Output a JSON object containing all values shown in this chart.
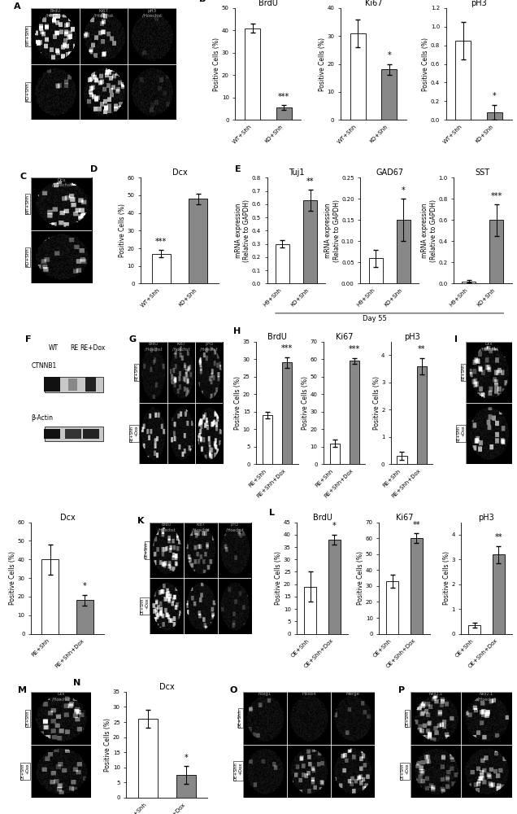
{
  "B_BrdU": {
    "bars": [
      41,
      5.5
    ],
    "errors": [
      2,
      1
    ],
    "labels": [
      "WT+Shh",
      "KO+Shh"
    ],
    "sig": "***",
    "sig_bar": 1,
    "ylim": [
      0,
      50
    ],
    "yticks": [
      0,
      10,
      20,
      30,
      40,
      50
    ]
  },
  "B_Ki67": {
    "bars": [
      31,
      18
    ],
    "errors": [
      5,
      2
    ],
    "labels": [
      "WT+Shh",
      "KO+Shh"
    ],
    "sig": "*",
    "sig_bar": 1,
    "ylim": [
      0,
      40
    ],
    "yticks": [
      0,
      10,
      20,
      30,
      40
    ]
  },
  "B_pH3": {
    "bars": [
      0.85,
      0.08
    ],
    "errors": [
      0.2,
      0.08
    ],
    "labels": [
      "WT+Shh",
      "KO+Shh"
    ],
    "sig": "*",
    "sig_bar": 1,
    "ylim": [
      0,
      1.2
    ],
    "yticks": [
      0,
      0.2,
      0.4,
      0.6,
      0.8,
      1.0,
      1.2
    ]
  },
  "D_Dcx": {
    "bars": [
      17,
      48
    ],
    "errors": [
      2,
      3
    ],
    "labels": [
      "WT+Shh",
      "KO+Shh"
    ],
    "sig": "***",
    "sig_bar": 0,
    "ylim": [
      0,
      60
    ],
    "yticks": [
      0,
      10,
      20,
      30,
      40,
      50,
      60
    ]
  },
  "E_Tuj1": {
    "bars": [
      0.3,
      0.63
    ],
    "errors": [
      0.03,
      0.08
    ],
    "labels": [
      "H9+Shh",
      "KO+Shh"
    ],
    "sig": "**",
    "sig_bar": 1,
    "ylim": [
      0,
      0.8
    ],
    "yticks": [
      0,
      0.1,
      0.2,
      0.3,
      0.4,
      0.5,
      0.6,
      0.7,
      0.8
    ]
  },
  "E_GAD67": {
    "bars": [
      0.06,
      0.15
    ],
    "errors": [
      0.02,
      0.05
    ],
    "labels": [
      "H9+Shh",
      "KO+Shh"
    ],
    "sig": "*",
    "sig_bar": 1,
    "ylim": [
      0,
      0.25
    ],
    "yticks": [
      0,
      0.05,
      0.1,
      0.15,
      0.2,
      0.25
    ]
  },
  "E_SST": {
    "bars": [
      0.02,
      0.6
    ],
    "errors": [
      0.01,
      0.15
    ],
    "labels": [
      "H9+Shh",
      "KO+Shh"
    ],
    "sig": "***",
    "sig_bar": 1,
    "ylim": [
      0,
      1.0
    ],
    "yticks": [
      0,
      0.2,
      0.4,
      0.6,
      0.8,
      1.0
    ]
  },
  "H_BrdU": {
    "bars": [
      14,
      29
    ],
    "errors": [
      1,
      1.5
    ],
    "labels": [
      "RE+Shh",
      "RE+Shh+Dox"
    ],
    "sig": "***",
    "sig_bar": 1,
    "ylim": [
      0,
      35
    ],
    "yticks": [
      0,
      5,
      10,
      15,
      20,
      25,
      30,
      35
    ]
  },
  "H_Ki67": {
    "bars": [
      12,
      59
    ],
    "errors": [
      2,
      1.5
    ],
    "labels": [
      "RE+Shh",
      "RE+Shh+Dox"
    ],
    "sig": "***",
    "sig_bar": 1,
    "ylim": [
      0,
      70
    ],
    "yticks": [
      0,
      10,
      20,
      30,
      40,
      50,
      60,
      70
    ]
  },
  "H_pH3": {
    "bars": [
      0.3,
      3.6
    ],
    "errors": [
      0.15,
      0.3
    ],
    "labels": [
      "RE+Shh",
      "RE+Shh+Dox"
    ],
    "sig": "**",
    "sig_bar": 1,
    "ylim": [
      0,
      4.5
    ],
    "yticks": [
      0,
      1,
      2,
      3,
      4
    ]
  },
  "J_Dcx": {
    "bars": [
      40,
      18
    ],
    "errors": [
      8,
      3
    ],
    "labels": [
      "RE+Shh",
      "RE+Shh+Dox"
    ],
    "sig": "*",
    "sig_bar": 1,
    "ylim": [
      0,
      60
    ],
    "yticks": [
      0,
      10,
      20,
      30,
      40,
      50,
      60
    ]
  },
  "L_BrdU": {
    "bars": [
      19,
      38
    ],
    "errors": [
      6,
      2
    ],
    "labels": [
      "OE+Shh",
      "OE+Shh+Dox"
    ],
    "sig": "*",
    "sig_bar": 1,
    "ylim": [
      0,
      45
    ],
    "yticks": [
      0,
      5,
      10,
      15,
      20,
      25,
      30,
      35,
      40,
      45
    ]
  },
  "L_Ki67": {
    "bars": [
      33,
      60
    ],
    "errors": [
      4,
      3
    ],
    "labels": [
      "OE+Shh",
      "OE+Shh+Dox"
    ],
    "sig": "**",
    "sig_bar": 1,
    "ylim": [
      0,
      70
    ],
    "yticks": [
      0,
      10,
      20,
      30,
      40,
      50,
      60,
      70
    ]
  },
  "L_pH3": {
    "bars": [
      0.35,
      3.2
    ],
    "errors": [
      0.1,
      0.35
    ],
    "labels": [
      "OE+Shh",
      "OE+Shh+Dox"
    ],
    "sig": "**",
    "sig_bar": 1,
    "ylim": [
      0,
      4.5
    ],
    "yticks": [
      0,
      1,
      2,
      3,
      4
    ]
  },
  "N_Dcx": {
    "bars": [
      26,
      7.5
    ],
    "errors": [
      3,
      3
    ],
    "labels": [
      "OE+Shh",
      "OE+Shh+Dox"
    ],
    "sig": "*",
    "sig_bar": 1,
    "ylim": [
      0,
      35
    ],
    "yticks": [
      0,
      5,
      10,
      15,
      20,
      25,
      30,
      35
    ]
  },
  "white_color": "#ffffff",
  "gray_color": "#888888",
  "bar_width": 0.5,
  "tick_fontsize": 5,
  "label_fontsize": 5.5,
  "title_fontsize": 7,
  "sig_fontsize": 7,
  "panel_label_fontsize": 8
}
